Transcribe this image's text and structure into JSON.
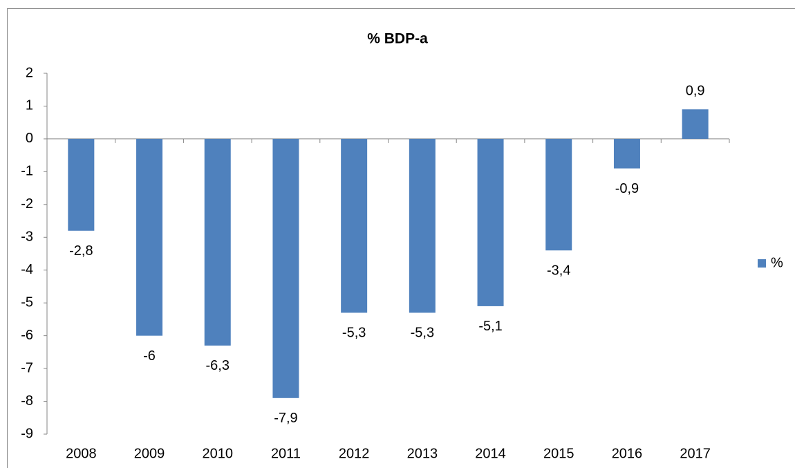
{
  "chart_data": {
    "type": "bar",
    "title": "% BDP-a",
    "categories": [
      "2008",
      "2009",
      "2010",
      "2011",
      "2012",
      "2013",
      "2014",
      "2015",
      "2016",
      "2017"
    ],
    "series": [
      {
        "name": "%",
        "color": "#4f81bd",
        "values": [
          -2.8,
          -6,
          -6.3,
          -7.9,
          -5.3,
          -5.3,
          -5.1,
          -3.4,
          -0.9,
          0.9
        ],
        "value_labels": [
          "-2,8",
          "-6",
          "-6,3",
          "-7,9",
          "-5,3",
          "-5,3",
          "-5,1",
          "-3,4",
          "-0,9",
          "0,9"
        ]
      }
    ],
    "ylim": [
      -9,
      2
    ],
    "yticks": [
      -9,
      -8,
      -7,
      -6,
      -5,
      -4,
      -3,
      -2,
      -1,
      0,
      1,
      2
    ],
    "grid": false,
    "legend": "right"
  }
}
